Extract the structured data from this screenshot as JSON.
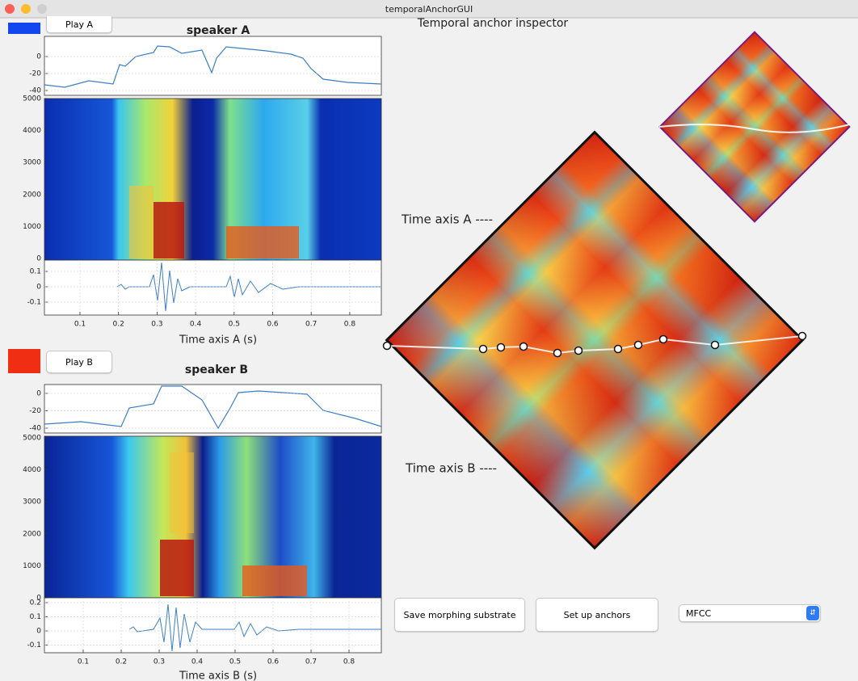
{
  "window": {
    "title": "temporalAnchorGUI"
  },
  "speaker_a": {
    "button": "Play A",
    "title": "speaker A",
    "power_ticks": [
      0,
      -20,
      -40
    ],
    "spectrogram_ticks": [
      5000,
      4000,
      3000,
      2000,
      1000,
      0
    ],
    "waveform_ticks": [
      0.1,
      0,
      -0.1
    ],
    "time_ticks": [
      0.1,
      0.2,
      0.3,
      0.4,
      0.5,
      0.6,
      0.7,
      0.8
    ],
    "xlabel": "Time axis A (s)"
  },
  "speaker_b": {
    "button": "Play B",
    "title": "speaker B",
    "power_ticks": [
      0,
      -20,
      -40
    ],
    "spectrogram_ticks": [
      5000,
      4000,
      3000,
      2000,
      1000,
      0
    ],
    "waveform_ticks": [
      0.2,
      0.1,
      0,
      -0.1
    ],
    "time_ticks": [
      0.1,
      0.2,
      0.3,
      0.4,
      0.5,
      0.6,
      0.7,
      0.8
    ],
    "xlabel": "Time axis B (s)"
  },
  "inspector": {
    "title": "Temporal anchor inspector",
    "axis_a_label": "Time axis A ----",
    "axis_b_label": "Time axis B ----"
  },
  "controls": {
    "save_button": "Save morphing substrate",
    "anchors_button": "Set up anchors",
    "feature_select": "MFCC"
  }
}
